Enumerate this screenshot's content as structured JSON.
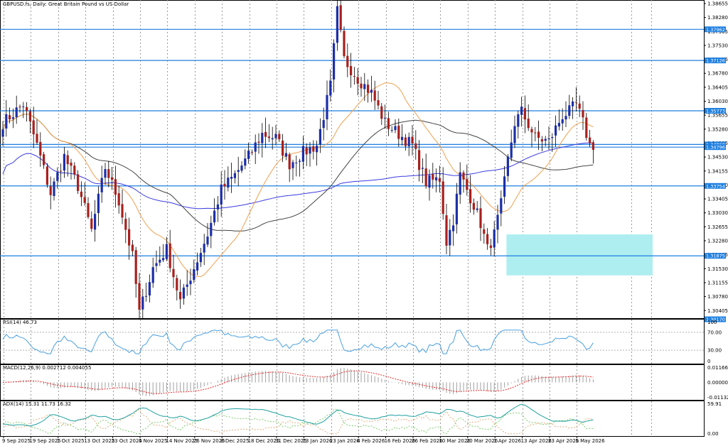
{
  "header": {
    "main_title": "GBPUSD.fs, Daily:  Great Britain Pound vs US Dollar",
    "rsi_title": "RSI(14) 46.73",
    "macd_title": "MACD(12,26,9) 0.002712 0.004055",
    "adx_title": "ADX(14) 15.31 11.73 16.32"
  },
  "colors": {
    "bull": "#1c2fa8",
    "bear": "#a8201c",
    "level": "#1e7fe0",
    "ma_fast": "#f0a050",
    "ma_mid": "#444444",
    "ma_slow": "#3a3ae0",
    "zone": "#aeeef0",
    "rsi": "#4aa0e0",
    "macd_signal": "#e03030",
    "adx": "#20a0a0",
    "di_plus": "#7fcf6f",
    "di_minus": "#e0b080"
  },
  "chart_data": {
    "type": "candlestick",
    "symbol": "GBPUSD.fs",
    "timeframe": "Daily",
    "ylim": [
      1.302,
      1.3875
    ],
    "y_ticks": [
      "1.38655",
      "1.38280",
      "1.37905",
      "1.37530",
      "1.37155",
      "1.36780",
      "1.36405",
      "1.36030",
      "1.35655",
      "1.35280",
      "1.34905",
      "1.34530",
      "1.34155",
      "1.33780",
      "1.33405",
      "1.33030",
      "1.32655",
      "1.32280",
      "1.31905",
      "1.31530",
      "1.31155",
      "1.30780",
      "1.30405",
      "1.30030"
    ],
    "price_levels": [
      {
        "label": "1.37962",
        "value": 1.37962
      },
      {
        "label": "1.37126",
        "value": 1.37126
      },
      {
        "label": "1.35773",
        "value": 1.35773
      },
      {
        "label": "1.34868",
        "value": 1.34868
      },
      {
        "label": "1.34796",
        "value": 1.34796
      },
      {
        "label": "1.33754",
        "value": 1.33754
      },
      {
        "label": "1.31875",
        "value": 1.31875
      },
      {
        "label": "1.30170",
        "value": 1.3017
      }
    ],
    "zone": {
      "start_index": 148,
      "end_index": 190,
      "top": 1.3245,
      "bottom": 1.3135
    },
    "x_labels": [
      {
        "index": 0,
        "label": "9 Sep 2025"
      },
      {
        "index": 8,
        "label": "19 Sep 2025"
      },
      {
        "index": 16,
        "label": "1 Oct 2025"
      },
      {
        "index": 24,
        "label": "13 Oct 2025"
      },
      {
        "index": 32,
        "label": "23 Oct 2025"
      },
      {
        "index": 40,
        "label": "4 Nov 2025"
      },
      {
        "index": 48,
        "label": "14 Nov 2025"
      },
      {
        "index": 56,
        "label": "26 Nov 2025"
      },
      {
        "index": 64,
        "label": "8 Dec 2025"
      },
      {
        "index": 72,
        "label": "18 Dec 2025"
      },
      {
        "index": 80,
        "label": "31 Dec 2025"
      },
      {
        "index": 88,
        "label": "13 Jan 2026"
      },
      {
        "index": 96,
        "label": "23 Jan 2026"
      },
      {
        "index": 104,
        "label": "4 Feb 2026"
      },
      {
        "index": 112,
        "label": "16 Feb 2026"
      },
      {
        "index": 120,
        "label": "26 Feb 2026"
      },
      {
        "index": 128,
        "label": "10 Mar 2026"
      },
      {
        "index": 136,
        "label": "20 Mar 2026"
      },
      {
        "index": 144,
        "label": "1 Apr 2026"
      },
      {
        "index": 152,
        "label": "13 Apr 2026"
      },
      {
        "index": 160,
        "label": "23 Apr 2026"
      },
      {
        "index": 168,
        "label": "5 May 2026"
      }
    ],
    "close_anchors": [
      [
        0,
        1.3545
      ],
      [
        6,
        1.3595
      ],
      [
        10,
        1.3485
      ],
      [
        14,
        1.3355
      ],
      [
        18,
        1.3455
      ],
      [
        22,
        1.3375
      ],
      [
        26,
        1.3255
      ],
      [
        30,
        1.3425
      ],
      [
        34,
        1.3335
      ],
      [
        38,
        1.3185
      ],
      [
        40,
        1.3035
      ],
      [
        44,
        1.3155
      ],
      [
        48,
        1.3205
      ],
      [
        52,
        1.3065
      ],
      [
        56,
        1.3155
      ],
      [
        60,
        1.3245
      ],
      [
        64,
        1.3365
      ],
      [
        68,
        1.3405
      ],
      [
        72,
        1.3455
      ],
      [
        76,
        1.3515
      ],
      [
        80,
        1.3505
      ],
      [
        84,
        1.3435
      ],
      [
        88,
        1.3465
      ],
      [
        92,
        1.3485
      ],
      [
        96,
        1.3645
      ],
      [
        98,
        1.3845
      ],
      [
        100,
        1.3715
      ],
      [
        104,
        1.3665
      ],
      [
        108,
        1.3625
      ],
      [
        112,
        1.3545
      ],
      [
        116,
        1.3515
      ],
      [
        120,
        1.3485
      ],
      [
        124,
        1.3385
      ],
      [
        128,
        1.3395
      ],
      [
        130,
        1.3225
      ],
      [
        132,
        1.3285
      ],
      [
        134,
        1.3405
      ],
      [
        138,
        1.3325
      ],
      [
        140,
        1.3275
      ],
      [
        142,
        1.3205
      ],
      [
        144,
        1.3245
      ],
      [
        146,
        1.3325
      ],
      [
        148,
        1.3445
      ],
      [
        150,
        1.3545
      ],
      [
        152,
        1.3575
      ],
      [
        156,
        1.3505
      ],
      [
        160,
        1.3495
      ],
      [
        164,
        1.3565
      ],
      [
        166,
        1.3575
      ],
      [
        168,
        1.3595
      ],
      [
        170,
        1.3545
      ],
      [
        172,
        1.3485
      ]
    ],
    "rsi": {
      "ylim": [
        0,
        100
      ],
      "levels": [
        70,
        30
      ],
      "y_ticks": [
        "100",
        "70.00",
        "30.00",
        "0"
      ],
      "current": 46.73
    },
    "macd": {
      "y_ticks": [
        "0.011665",
        "0.000000",
        "-0.011326"
      ],
      "ylim": [
        -0.011326,
        0.011665
      ]
    },
    "adx": {
      "y_ticks": [
        "59.91",
        "0.00"
      ],
      "ylim": [
        0,
        59.91
      ]
    }
  }
}
